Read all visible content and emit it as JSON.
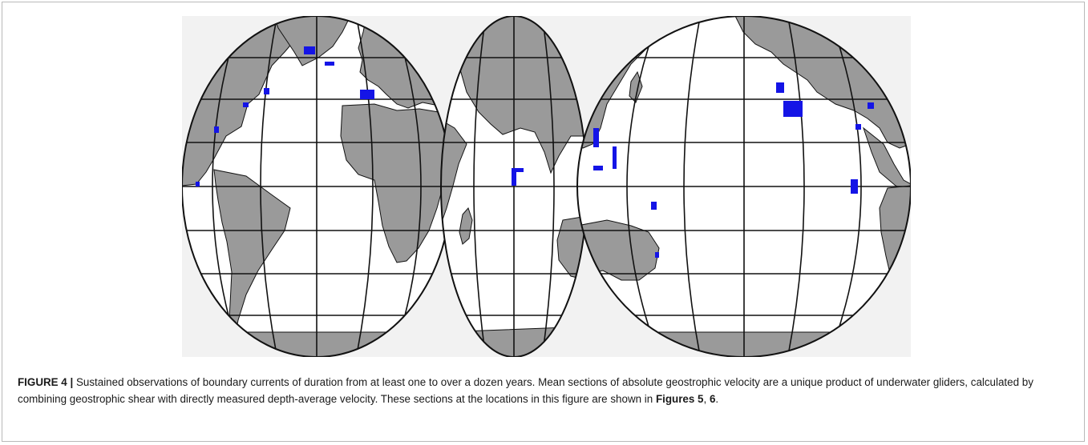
{
  "figure": {
    "caption": {
      "label": "FIGURE 4 |",
      "text_1": " Sustained observations of boundary currents of duration from at least one to over a dozen years. Mean sections of absolute geostrophic velocity are a unique product of underwater gliders, calculated by combining geostrophic shear with directly measured depth-average velocity. These sections at the locations in this figure are shown in ",
      "ref_1": "Figures 5",
      "sep": ", ",
      "ref_2": "6",
      "end": "."
    },
    "map": {
      "projection": "interrupted-globe",
      "land_color": "#9a9a9a",
      "ocean_color": "#ffffff",
      "observation_color": "#1414e6",
      "observation_sites": [
        "labrador-sea",
        "greenland-irminger",
        "iceland-norway",
        "gulf-of-maine",
        "florida-gulf-stream",
        "caribbean",
        "mediterranean",
        "north-indian-ocean",
        "kuroshio-taiwan",
        "philippines",
        "marianas",
        "solomon-sea",
        "east-australia",
        "gulf-of-alaska",
        "california-current",
        "gulf-of-mexico",
        "us-east-coast",
        "peru-chile"
      ]
    }
  }
}
